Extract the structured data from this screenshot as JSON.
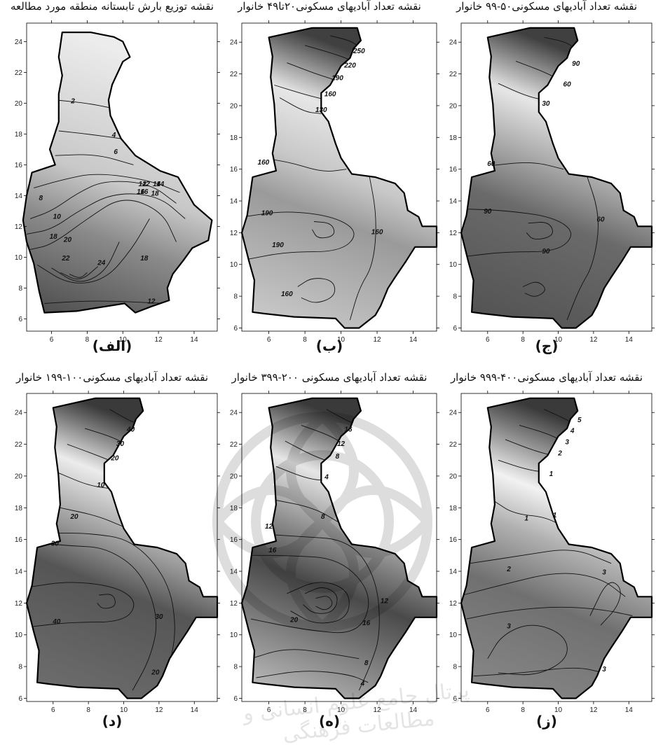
{
  "panels": [
    {
      "title": "نقشه توزیع بارش تابستانه منطقه مورد مطالعه",
      "letter": "(الف)",
      "labels": [
        "2",
        "4",
        "6",
        "8",
        "10",
        "12",
        "14",
        "16",
        "18",
        "18",
        "18",
        "20",
        "22",
        "24",
        "12",
        "12",
        "14",
        "16"
      ]
    },
    {
      "title": "نقشه تعداد آبادیهای مسکونی۲۰تا۴۹ خانوار",
      "letter": "(ب)",
      "labels": [
        "250",
        "220",
        "190",
        "160",
        "130",
        "160",
        "190",
        "190",
        "160",
        "160"
      ]
    },
    {
      "title": "نقشه تعداد آبادیهای مسکونی۵۰-۹۹ خانوار",
      "letter": "(ج)",
      "labels": [
        "90",
        "60",
        "30",
        "60",
        "90",
        "90",
        "60"
      ]
    },
    {
      "title": "نقشه تعداد آبادیهای مسکونی۱۰۰-۱۹۹ خانوار",
      "letter": "(د)",
      "labels": [
        "40",
        "30",
        "20",
        "10",
        "20",
        "30",
        "40",
        "30",
        "20"
      ]
    },
    {
      "title": "نقشه تعداد آبادیهای مسکونی ۲۰۰-۳۹۹ خانوار",
      "letter": "(ه)",
      "labels": [
        "16",
        "12",
        "8",
        "4",
        "8",
        "12",
        "16",
        "20",
        "16",
        "12",
        "8",
        "4"
      ]
    },
    {
      "title": "نقشه تعداد آبادیهای مسکونی۴۰۰-۹۹۹ خانوار",
      "letter": "(ز)",
      "labels": [
        "5",
        "4",
        "3",
        "2",
        "1",
        "1",
        "1",
        "2",
        "3",
        "3",
        "3"
      ]
    }
  ],
  "axes": {
    "x_ticks": [
      "6",
      "8",
      "10",
      "12",
      "14"
    ],
    "y_ticks_top_left": [
      "6",
      "8",
      "10",
      "12",
      "14",
      "16",
      "18",
      "20",
      "22",
      "24"
    ],
    "y_ticks_top": [
      "6",
      "8",
      "10",
      "12",
      "14",
      "16",
      "18",
      "20",
      "22",
      "24"
    ],
    "y_ticks_bottom": [
      "6",
      "8",
      "10",
      "12",
      "14",
      "16",
      "18",
      "20",
      "22",
      "24"
    ]
  },
  "watermark": "پرتال جامع علوم انسانی و مطالعات فرهنگی",
  "colors": {
    "light": "#e8e8e8",
    "mid": "#a8a8a8",
    "dark": "#4a4a4a",
    "outline": "#000000"
  }
}
